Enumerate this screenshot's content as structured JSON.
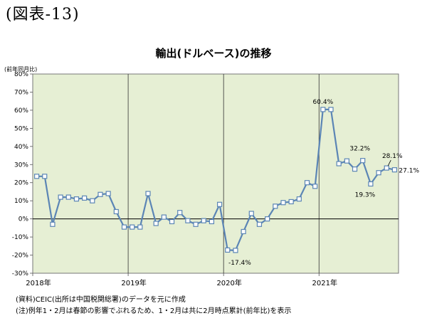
{
  "figure_label": "(図表-13)",
  "chart_data": {
    "type": "line",
    "title": "輸出(ドルベース)の推移",
    "y_unit_label": "(前年同月比)",
    "ylim": [
      -30,
      80
    ],
    "y_ticks": [
      "80%",
      "70%",
      "60%",
      "50%",
      "40%",
      "30%",
      "20%",
      "10%",
      "0%",
      "-10%",
      "-20%",
      "-30%"
    ],
    "x_tick_labels": [
      "2018年",
      "2019年",
      "2020年",
      "2021年"
    ],
    "grid": "vertical year separators, zero line",
    "background_color": "#e6efd4",
    "line_color": "#5b85b5",
    "series": [
      {
        "values": [
          23.5,
          23.5,
          -3,
          12,
          12,
          11,
          11.5,
          10,
          13.5,
          14,
          4,
          -4.5,
          -4.5,
          -4.5,
          14,
          -2.5,
          1,
          -1.5,
          3.5,
          -1,
          -3,
          -1,
          -1.5,
          8,
          -17.2,
          -17.4,
          -7,
          3,
          -3,
          0,
          7,
          9,
          9.5,
          11,
          20,
          18,
          60.4,
          60.4,
          30.5,
          32,
          27.5,
          32.2,
          19.3,
          25.5,
          28.1,
          27.1
        ]
      }
    ],
    "annotations": [
      {
        "text": "60.4%",
        "index": 36
      },
      {
        "text": "32.2%",
        "index": 41
      },
      {
        "text": "28.1%",
        "index": 44
      },
      {
        "text": "27.1%",
        "index": 45
      },
      {
        "text": "19.3%",
        "index": 42
      },
      {
        "text": "-17.4%",
        "index": 25
      }
    ]
  },
  "notes": [
    "(資料)CEIC(出所は中国税関総署)のデータを元に作成",
    "(注)例年1・2月は春節の影響でぶれるため、1・2月は共に2月時点累計(前年比)を表示"
  ]
}
